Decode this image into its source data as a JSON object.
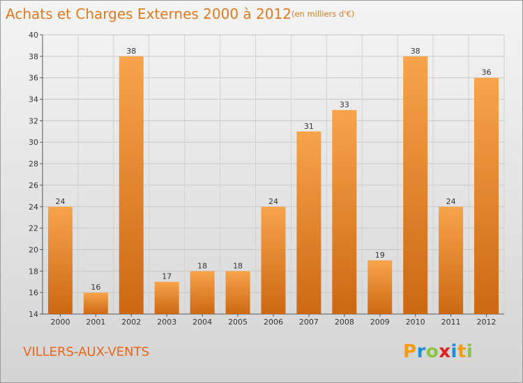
{
  "header": {
    "title": "Achats et Charges Externes 2000 à 2012",
    "subtitle": "(en milliers d'€)"
  },
  "footer": {
    "town": "VILLERS-AUX-VENTS",
    "logo_text": "Proxiti",
    "logo_letters": [
      {
        "ch": "P",
        "color": "#f39c12"
      },
      {
        "ch": "r",
        "color": "#1a8fd6"
      },
      {
        "ch": "o",
        "color": "#8bc53f"
      },
      {
        "ch": "x",
        "color": "#e02020"
      },
      {
        "ch": "i",
        "color": "#1a8fd6"
      },
      {
        "ch": "t",
        "color": "#f39c12"
      },
      {
        "ch": "i",
        "color": "#8bc53f"
      }
    ]
  },
  "colors": {
    "bar_light": "#f7a44c",
    "bar_dark": "#cc6814",
    "title": "#e07a1f"
  },
  "chart_data": {
    "type": "bar",
    "title": "Achats et Charges Externes 2000 à 2012",
    "subtitle": "(en milliers d'€)",
    "categories": [
      "2000",
      "2001",
      "2002",
      "2003",
      "2004",
      "2005",
      "2006",
      "2007",
      "2008",
      "2009",
      "2010",
      "2011",
      "2012"
    ],
    "values": [
      24,
      16,
      38,
      17,
      18,
      18,
      24,
      31,
      33,
      19,
      38,
      24,
      36
    ],
    "ylim": [
      14,
      40
    ],
    "yticks": [
      14,
      16,
      18,
      20,
      22,
      24,
      26,
      28,
      30,
      32,
      34,
      36,
      38,
      40
    ],
    "grid": true,
    "xlabel": "",
    "ylabel": ""
  }
}
